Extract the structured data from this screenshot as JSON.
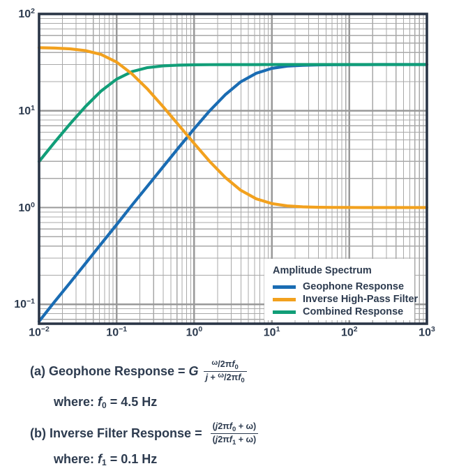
{
  "chart_data": {
    "type": "line",
    "title": "",
    "xlabel": "",
    "ylabel": "",
    "xscale": "log",
    "yscale": "log",
    "xlim": [
      0.01,
      1000
    ],
    "ylim": [
      0.063,
      100
    ],
    "grid": "on",
    "x_tick_values": [
      0.01,
      0.1,
      1,
      10,
      100,
      1000
    ],
    "y_tick_values": [
      100,
      10,
      1,
      0.1
    ],
    "x_tick_labels": [
      {
        "base": "10",
        "exp": "−2"
      },
      {
        "base": "10",
        "exp": "−1"
      },
      {
        "base": "10",
        "exp": "0"
      },
      {
        "base": "10",
        "exp": "1"
      },
      {
        "base": "10",
        "exp": "2"
      },
      {
        "base": "10",
        "exp": "3"
      }
    ],
    "y_tick_labels": [
      {
        "base": "10",
        "exp": "2"
      },
      {
        "base": "10",
        "exp": "1"
      },
      {
        "base": "10",
        "exp": "0"
      },
      {
        "base": "10",
        "exp": "−1"
      }
    ],
    "legend": {
      "title": "Amplitude Spectrum",
      "position": "lower right"
    },
    "frame_color": "#2A3546",
    "grid_minor_color": "#A8A8A8",
    "grid_major_color": "#999999",
    "draw_order": [
      0,
      2,
      1
    ],
    "series": [
      {
        "name": "Geophone Response",
        "color": "#1A6CB3",
        "points": [
          [
            0.01,
            0.0667
          ],
          [
            0.0158,
            0.106
          ],
          [
            0.0251,
            0.167
          ],
          [
            0.0398,
            0.265
          ],
          [
            0.0631,
            0.421
          ],
          [
            0.1,
            0.666
          ],
          [
            0.158,
            1.06
          ],
          [
            0.251,
            1.67
          ],
          [
            0.398,
            2.64
          ],
          [
            0.631,
            4.17
          ],
          [
            1,
            6.51
          ],
          [
            1.58,
            9.97
          ],
          [
            2.51,
            14.6
          ],
          [
            3.98,
            19.9
          ],
          [
            6.31,
            24.4
          ],
          [
            10,
            27.4
          ],
          [
            15.8,
            28.9
          ],
          [
            25.1,
            29.5
          ],
          [
            39.8,
            29.8
          ],
          [
            63.1,
            29.9
          ],
          [
            100,
            29.97
          ],
          [
            158,
            29.99
          ],
          [
            251,
            30
          ],
          [
            398,
            30
          ],
          [
            631,
            30
          ],
          [
            1000,
            30
          ]
        ]
      },
      {
        "name": "Inverse High-Pass Filter",
        "color": "#F2A11E",
        "points": [
          [
            0.01,
            44.8
          ],
          [
            0.0158,
            44.4
          ],
          [
            0.0251,
            43.6
          ],
          [
            0.0398,
            41.8
          ],
          [
            0.0631,
            38.1
          ],
          [
            0.1,
            31.8
          ],
          [
            0.158,
            24.0
          ],
          [
            0.251,
            16.7
          ],
          [
            0.398,
            11.0
          ],
          [
            0.631,
            7.11
          ],
          [
            1,
            4.59
          ],
          [
            1.58,
            3.0
          ],
          [
            2.51,
            2.05
          ],
          [
            3.98,
            1.51
          ],
          [
            6.31,
            1.23
          ],
          [
            10,
            1.1
          ],
          [
            15.8,
            1.04
          ],
          [
            25.1,
            1.016
          ],
          [
            39.8,
            1.006
          ],
          [
            63.1,
            1.003
          ],
          [
            100,
            1.001
          ],
          [
            158,
            1.0005
          ],
          [
            251,
            1.0002
          ],
          [
            398,
            1.0001
          ],
          [
            631,
            1
          ],
          [
            1000,
            1
          ]
        ]
      },
      {
        "name": "Combined Response",
        "color": "#119E78",
        "points": [
          [
            0.01,
            2.99
          ],
          [
            0.0158,
            4.7
          ],
          [
            0.0251,
            7.31
          ],
          [
            0.0398,
            11.1
          ],
          [
            0.0631,
            16.0
          ],
          [
            0.1,
            21.2
          ],
          [
            0.158,
            25.4
          ],
          [
            0.251,
            27.9
          ],
          [
            0.398,
            29.1
          ],
          [
            0.631,
            29.6
          ],
          [
            1,
            29.85
          ],
          [
            1.58,
            29.94
          ],
          [
            2.51,
            29.98
          ],
          [
            3.98,
            29.98
          ],
          [
            6.31,
            29.99
          ],
          [
            10,
            30
          ],
          [
            15.8,
            30
          ],
          [
            25.1,
            30
          ],
          [
            39.8,
            30
          ],
          [
            63.1,
            30
          ],
          [
            100,
            30
          ],
          [
            158,
            30
          ],
          [
            251,
            30
          ],
          [
            398,
            30
          ],
          [
            631,
            30
          ],
          [
            1000,
            30
          ]
        ]
      }
    ]
  },
  "formulas": {
    "a": {
      "prefix": "(a) Geophone Response = ",
      "gain": "G",
      "omega": "ω",
      "slash": "/",
      "coef": "2π",
      "fvar": "f",
      "fsub": "0",
      "den_j": "j",
      "den_plus": " + ",
      "where_prefix": "where: ",
      "where_var": "f",
      "where_sub": "0",
      "where_rest": " = 4.5 Hz"
    },
    "b": {
      "prefix": "(b) Inverse Filter Response = ",
      "open": "(",
      "j": "j",
      "coef": "2π",
      "fvar": "f",
      "num_sub": "0",
      "den_sub": "1",
      "close": " + ω)",
      "where_prefix": "where: ",
      "where_var": "f",
      "where_sub": "1",
      "where_rest": " = 0.1 Hz"
    }
  }
}
